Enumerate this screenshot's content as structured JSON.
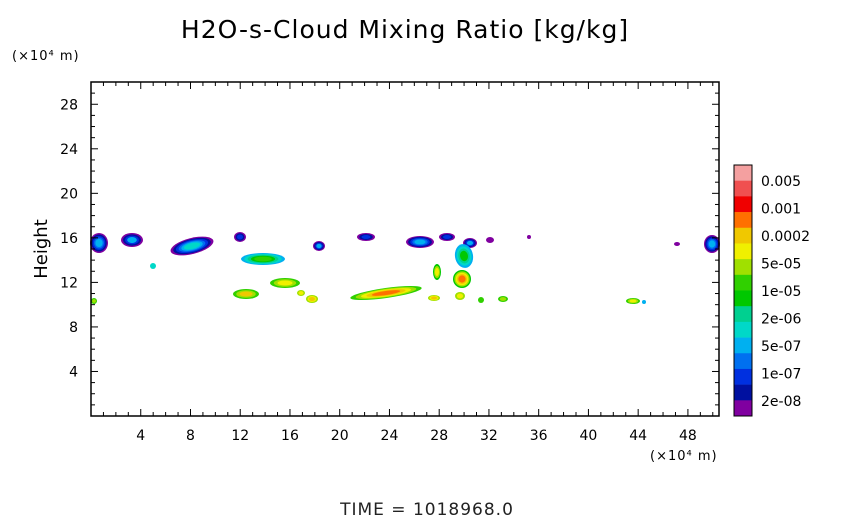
{
  "chart_data": {
    "type": "heatmap",
    "title": "H2O-s-Cloud Mixing Ratio [kg/kg]",
    "ylabel": "Height",
    "y_unit": "(×10⁴ m)",
    "x_unit": "(×10⁴ m)",
    "xlim": [
      0,
      50.5
    ],
    "ylim": [
      0,
      30
    ],
    "xticks": [
      "4",
      "8",
      "12",
      "16",
      "20",
      "24",
      "28",
      "32",
      "36",
      "40",
      "44",
      "48"
    ],
    "yticks": [
      "4",
      "8",
      "12",
      "16",
      "20",
      "24",
      "28"
    ],
    "colorbar": {
      "labels": [
        "0.005",
        "0.001",
        "0.0002",
        "5e-05",
        "1e-05",
        "2e-06",
        "5e-07",
        "1e-07",
        "2e-08"
      ],
      "colors": [
        "#f4a0a0",
        "#f05050",
        "#f00000",
        "#ff7000",
        "#f0c800",
        "#f0f000",
        "#a0e000",
        "#30d000",
        "#00c800",
        "#00d090",
        "#00d8c8",
        "#00b0f0",
        "#0070f0",
        "#0030e0",
        "#0010a0",
        "#8000a0"
      ]
    },
    "features": [
      {
        "x": 0.5,
        "y": 15.3,
        "level": 2
      },
      {
        "x": 3.3,
        "y": 15.6,
        "level": 2
      },
      {
        "x": 7.8,
        "y": 15.0,
        "level": 3
      },
      {
        "x": 12.0,
        "y": 16.0,
        "level": 1
      },
      {
        "x": 13.6,
        "y": 14.0,
        "level": 5
      },
      {
        "x": 15.4,
        "y": 12.0,
        "level": 6
      },
      {
        "x": 12.9,
        "y": 11.0,
        "level": 7
      },
      {
        "x": 17.8,
        "y": 10.5,
        "level": 7
      },
      {
        "x": 18.3,
        "y": 15.2,
        "level": 3
      },
      {
        "x": 22.3,
        "y": 16.0,
        "level": 1
      },
      {
        "x": 24.5,
        "y": 11.2,
        "level": 8
      },
      {
        "x": 26.8,
        "y": 15.6,
        "level": 2
      },
      {
        "x": 28.2,
        "y": 12.5,
        "level": 6
      },
      {
        "x": 30.2,
        "y": 13.5,
        "level": 8
      },
      {
        "x": 32.5,
        "y": 10.5,
        "level": 5
      },
      {
        "x": 43.8,
        "y": 10.2,
        "level": 4
      },
      {
        "x": 49.6,
        "y": 15.2,
        "level": 3
      }
    ],
    "time_label": "TIME =  1018968.0"
  }
}
